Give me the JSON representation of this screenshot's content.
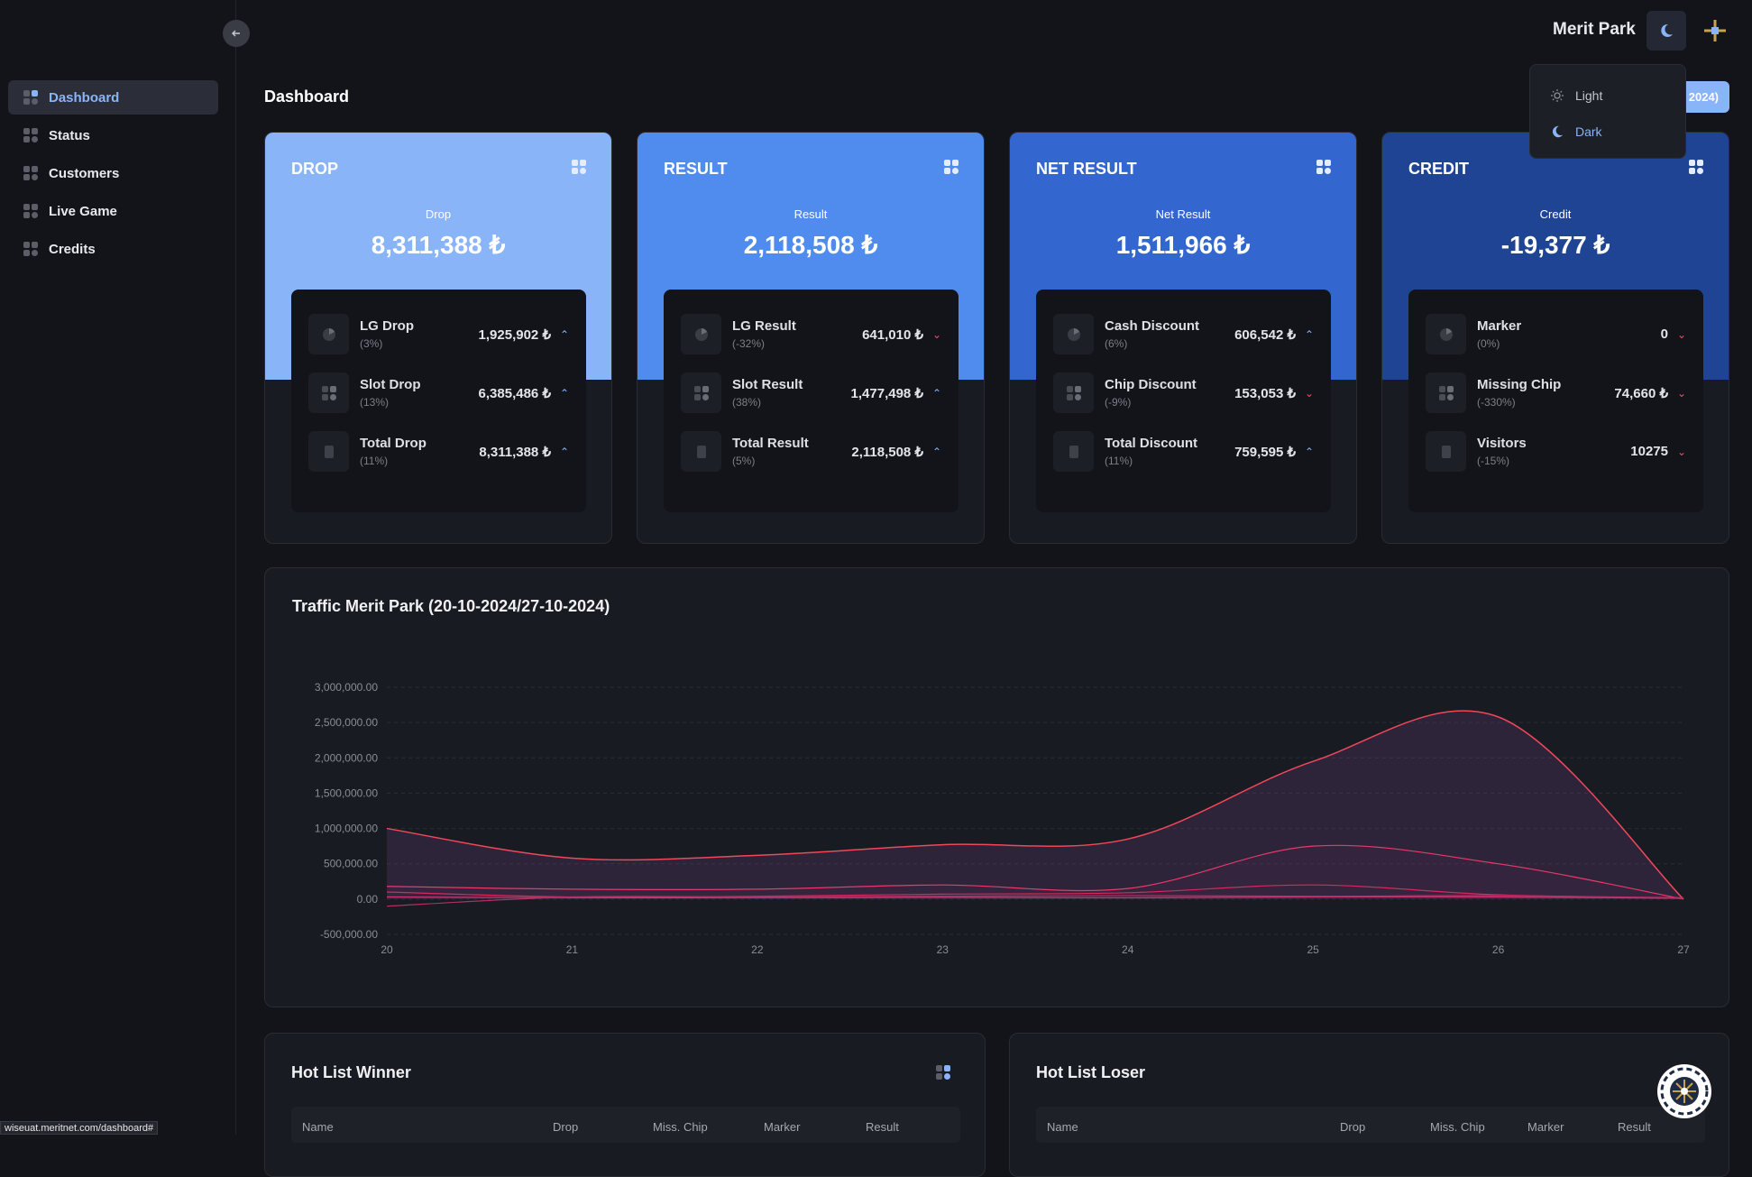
{
  "colors": {
    "bg": "#131419",
    "drop": "#8ab4f8",
    "result": "#4f8cee",
    "net": "#3367cf",
    "credit": "#1f4494",
    "line_red": "#f0475a",
    "arrow_down": "#f05260"
  },
  "sidebar": {
    "collapse_icon": "arrow-left-icon",
    "items": [
      {
        "label": "Dashboard",
        "active": true
      },
      {
        "label": "Status"
      },
      {
        "label": "Customers"
      },
      {
        "label": "Live Game"
      },
      {
        "label": "Credits"
      }
    ]
  },
  "topbar": {
    "title": "Merit Park",
    "theme_icon": "moon-icon",
    "logo_icon": "cross-logo-icon"
  },
  "theme_menu": {
    "light": "Light",
    "dark": "Dark"
  },
  "page": {
    "title": "Dashboard",
    "date_button": "2024)"
  },
  "cards": [
    {
      "name": "DROP",
      "sub": "Drop",
      "value": "8,311,388 ₺",
      "rows": [
        {
          "label": "LG Drop",
          "pct": "(3%)",
          "value": "1,925,902 ₺",
          "trend": "up"
        },
        {
          "label": "Slot Drop",
          "pct": "(13%)",
          "value": "6,385,486 ₺",
          "trend": "up"
        },
        {
          "label": "Total Drop",
          "pct": "(11%)",
          "value": "8,311,388 ₺",
          "trend": "up"
        }
      ]
    },
    {
      "name": "RESULT",
      "sub": "Result",
      "value": "2,118,508 ₺",
      "rows": [
        {
          "label": "LG Result",
          "pct": "(-32%)",
          "value": "641,010 ₺",
          "trend": "down"
        },
        {
          "label": "Slot Result",
          "pct": "(38%)",
          "value": "1,477,498 ₺",
          "trend": "up"
        },
        {
          "label": "Total Result",
          "pct": "(5%)",
          "value": "2,118,508 ₺",
          "trend": "up"
        }
      ]
    },
    {
      "name": "NET RESULT",
      "sub": "Net Result",
      "value": "1,511,966 ₺",
      "rows": [
        {
          "label": "Cash Discount",
          "pct": "(6%)",
          "value": "606,542 ₺",
          "trend": "up"
        },
        {
          "label": "Chip Discount",
          "pct": "(-9%)",
          "value": "153,053 ₺",
          "trend": "down"
        },
        {
          "label": "Total Discount",
          "pct": "(11%)",
          "value": "759,595 ₺",
          "trend": "up"
        }
      ]
    },
    {
      "name": "CREDIT",
      "sub": "Credit",
      "value": "-19,377 ₺",
      "rows": [
        {
          "label": "Marker",
          "pct": "(0%)",
          "value": "0",
          "trend": "down"
        },
        {
          "label": "Missing Chip",
          "pct": "(-330%)",
          "value": "74,660 ₺",
          "trend": "down"
        },
        {
          "label": "Visitors",
          "pct": "(-15%)",
          "value": "10275",
          "trend": "down"
        }
      ]
    }
  ],
  "chart_data": {
    "type": "area",
    "title": "Traffic Merit Park (20-10-2024/27-10-2024)",
    "x": [
      20,
      21,
      22,
      23,
      24,
      25,
      26,
      27
    ],
    "ylim": [
      -500000,
      3000000
    ],
    "yticks": [
      "3,000,000.00",
      "2,500,000.00",
      "2,000,000.00",
      "1,500,000.00",
      "1,000,000.00",
      "500,000.00",
      "0.00",
      "-500,000.00"
    ],
    "grid": true,
    "series": [
      {
        "values": [
          1000000,
          580000,
          620000,
          770000,
          850000,
          1950000,
          2580000,
          0
        ]
      },
      {
        "values": [
          180000,
          140000,
          140000,
          200000,
          150000,
          750000,
          500000,
          0
        ]
      },
      {
        "values": [
          100000,
          30000,
          40000,
          70000,
          90000,
          200000,
          60000,
          20000
        ]
      },
      {
        "values": [
          30000,
          20000,
          20000,
          25000,
          20000,
          30000,
          30000,
          10000
        ]
      },
      {
        "values": [
          -100000,
          30000,
          30000,
          40000,
          50000,
          40000,
          50000,
          10000
        ]
      }
    ]
  },
  "hot_winner": {
    "title": "Hot List Winner",
    "cols": [
      "Name",
      "Drop",
      "Miss. Chip",
      "Marker",
      "Result"
    ]
  },
  "hot_loser": {
    "title": "Hot List Loser",
    "cols": [
      "Name",
      "Drop",
      "Miss. Chip",
      "Marker",
      "Result"
    ]
  },
  "status_url": "wiseuat.meritnet.com/dashboard#"
}
